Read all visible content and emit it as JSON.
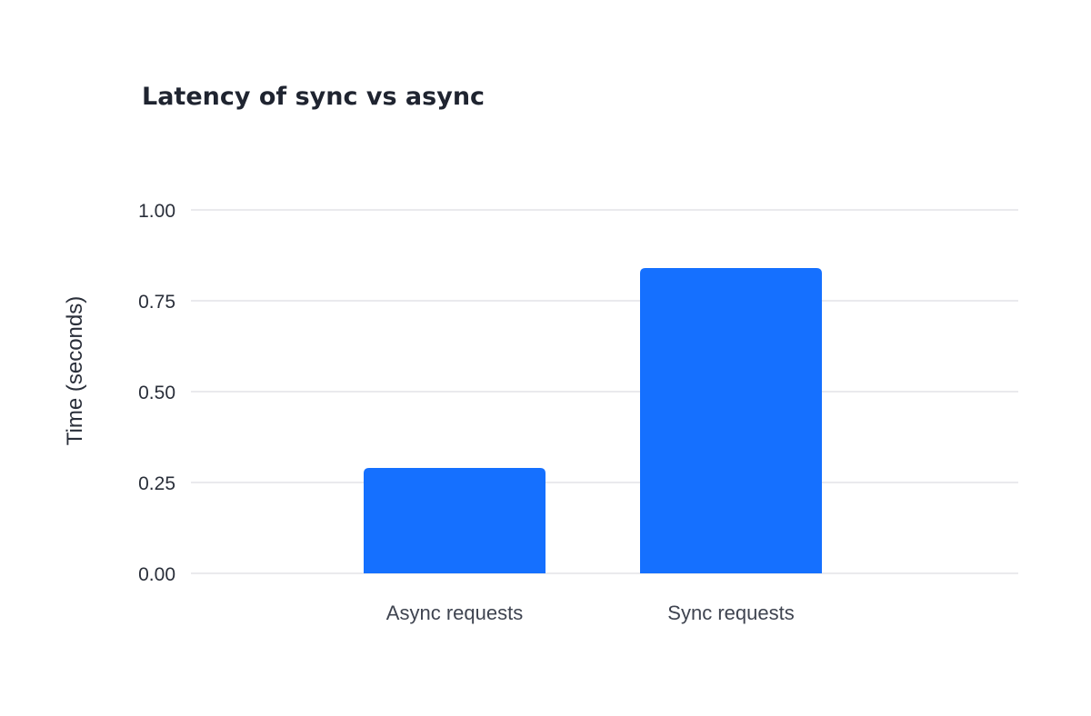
{
  "chart_data": {
    "type": "bar",
    "title": "Latency of sync vs  async",
    "xlabel": "",
    "ylabel": "Time (seconds)",
    "categories": [
      "Async requests",
      "Sync requests"
    ],
    "values": [
      0.29,
      0.84
    ],
    "ylim": [
      0,
      1
    ],
    "yticks": [
      "0.00",
      "0.25",
      "0.50",
      "0.75",
      "1.00"
    ],
    "ytick_values": [
      0,
      0.25,
      0.5,
      0.75,
      1
    ],
    "grid": true,
    "legend": "none",
    "bar_color": "#1570ff"
  }
}
